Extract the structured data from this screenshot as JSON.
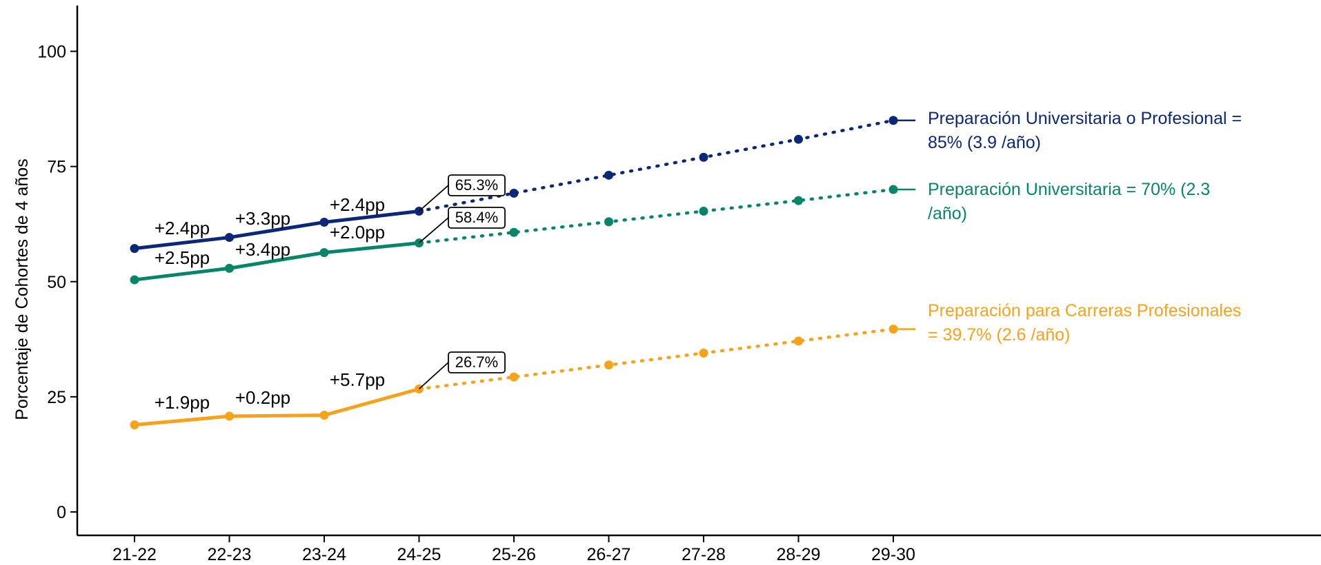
{
  "chart_data": {
    "type": "line",
    "title": "",
    "xlabel": "",
    "ylabel": "Porcentaje de Cohortes de 4 años",
    "ylim": [
      0,
      110
    ],
    "yticks": [
      0,
      25,
      50,
      75,
      100
    ],
    "categories": [
      "21-22",
      "22-23",
      "23-24",
      "24-25",
      "25-26",
      "26-27",
      "27-28",
      "28-29",
      "29-30"
    ],
    "grid": false,
    "legend": "none (direct labels at right end of lines)",
    "actual_through": "24-25",
    "projected_style": "dotted",
    "series": [
      {
        "label_lines": [
          "Preparación Universitaria o Profesional =",
          "85% (3.9 /año)"
        ],
        "color": "#0b2878",
        "values": [
          57.2,
          59.6,
          62.9,
          65.3,
          69.2,
          73.1,
          77.0,
          80.9,
          85.0
        ],
        "deltas": [
          "+2.4pp",
          "+3.3pp",
          "+2.4pp"
        ],
        "callout": "65.3%"
      },
      {
        "label_lines": [
          "Preparación Universitaria = 70% (2.3",
          "/año)"
        ],
        "color": "#07856a",
        "values": [
          50.4,
          52.9,
          56.3,
          58.4,
          60.7,
          63.0,
          65.3,
          67.6,
          70.0
        ],
        "deltas": [
          "+2.5pp",
          "+3.4pp",
          "+2.0pp"
        ],
        "callout": "58.4%"
      },
      {
        "label_lines": [
          "Preparación para Carreras Profesionales",
          "= 39.7% (2.6 /año)"
        ],
        "color": "#f7a21b",
        "values": [
          18.9,
          20.8,
          21.0,
          26.7,
          29.3,
          31.9,
          34.5,
          37.1,
          39.7
        ],
        "deltas": [
          "+1.9pp",
          "+0.2pp",
          "+5.7pp"
        ],
        "callout": "26.7%"
      }
    ]
  }
}
